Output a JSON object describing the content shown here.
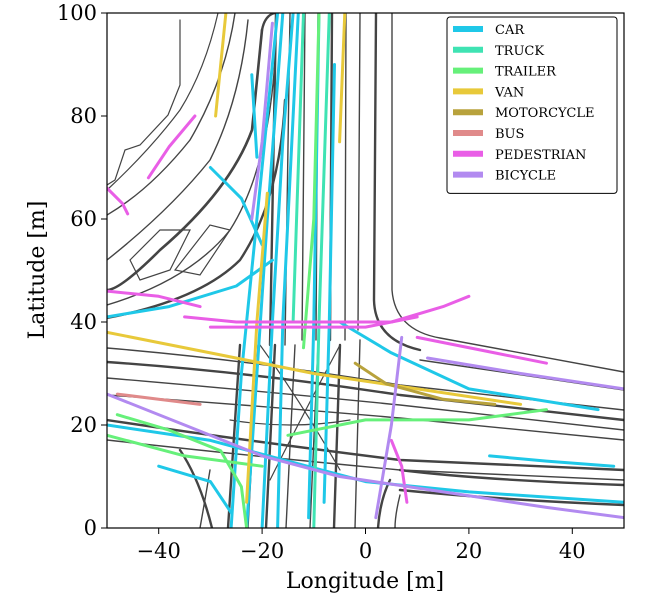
{
  "chart_data": {
    "type": "line",
    "xlabel": "Longitude [m]",
    "ylabel": "Latitude [m]",
    "xlim": [
      -50,
      50
    ],
    "ylim": [
      0,
      100
    ],
    "xticks": [
      -40,
      -20,
      0,
      20,
      40
    ],
    "yticks": [
      0,
      20,
      40,
      60,
      80,
      100
    ],
    "grid": false,
    "legend_position": "top-right",
    "series": [
      {
        "name": "CAR",
        "color": "#1fc8e8",
        "tracks": [
          [
            [
              -26,
              0
            ],
            [
              -24,
              30
            ],
            [
              -21,
              60
            ],
            [
              -18,
              90
            ],
            [
              -17,
              100
            ]
          ],
          [
            [
              -23,
              0
            ],
            [
              -21,
              30
            ],
            [
              -19,
              60
            ],
            [
              -16,
              100
            ]
          ],
          [
            [
              -20,
              0
            ],
            [
              -18,
              40
            ],
            [
              -16,
              75
            ],
            [
              -14,
              100
            ]
          ],
          [
            [
              -17,
              0
            ],
            [
              -16,
              40
            ],
            [
              -13,
              100
            ]
          ],
          [
            [
              -11,
              2
            ],
            [
              -10,
              40
            ],
            [
              -9,
              100
            ]
          ],
          [
            [
              -8,
              5
            ],
            [
              -7,
              40
            ],
            [
              -6,
              90
            ]
          ],
          [
            [
              -50,
              41
            ],
            [
              -38,
              43
            ],
            [
              -25,
              47
            ],
            [
              -18,
              52
            ]
          ],
          [
            [
              -50,
              20
            ],
            [
              -30,
              17
            ],
            [
              -15,
              13
            ],
            [
              0,
              9
            ],
            [
              20,
              7
            ],
            [
              50,
              5
            ]
          ],
          [
            [
              -5,
              40
            ],
            [
              5,
              34
            ],
            [
              20,
              27
            ],
            [
              45,
              23
            ]
          ],
          [
            [
              -40,
              12
            ],
            [
              -30,
              9
            ],
            [
              -26,
              3
            ]
          ],
          [
            [
              -30,
              70
            ],
            [
              -24,
              64
            ],
            [
              -20,
              55
            ]
          ],
          [
            [
              24,
              14
            ],
            [
              35,
              13
            ],
            [
              48,
              12
            ]
          ],
          [
            [
              -22,
              88
            ],
            [
              -21,
              72
            ]
          ]
        ]
      },
      {
        "name": "TRUCK",
        "color": "#3fe3b3",
        "tracks": [
          [
            [
              -14,
              40
            ],
            [
              -12,
              100
            ]
          ],
          [
            [
              -10,
              0
            ],
            [
              -9,
              40
            ],
            [
              -7,
              100
            ]
          ]
        ]
      },
      {
        "name": "TRAILER",
        "color": "#66f07a",
        "tracks": [
          [
            [
              -48,
              22
            ],
            [
              -38,
              19
            ],
            [
              -28,
              15
            ],
            [
              -24,
              8
            ],
            [
              -23,
              0
            ]
          ],
          [
            [
              -15,
              18
            ],
            [
              0,
              21
            ],
            [
              20,
              21
            ],
            [
              35,
              23
            ]
          ],
          [
            [
              -12,
              35
            ],
            [
              -10,
              60
            ],
            [
              -9,
              100
            ]
          ],
          [
            [
              -50,
              18
            ],
            [
              -35,
              14
            ],
            [
              -20,
              12
            ]
          ]
        ]
      },
      {
        "name": "VAN",
        "color": "#e8c93a",
        "tracks": [
          [
            [
              -29,
              80
            ],
            [
              -28,
              90
            ],
            [
              -27,
              100
            ]
          ],
          [
            [
              -50,
              38
            ],
            [
              -30,
              34
            ],
            [
              -10,
              30
            ],
            [
              10,
              27
            ],
            [
              30,
              24
            ]
          ],
          [
            [
              -23,
              5
            ],
            [
              -21,
              40
            ],
            [
              -19,
              65
            ]
          ],
          [
            [
              -5,
              75
            ],
            [
              -4,
              100
            ]
          ]
        ]
      },
      {
        "name": "MOTORCYCLE",
        "color": "#b8a23c",
        "tracks": [
          [
            [
              -2,
              32
            ],
            [
              4,
              28
            ],
            [
              15,
              25
            ],
            [
              25,
              24
            ]
          ]
        ]
      },
      {
        "name": "BUS",
        "color": "#e08a8a",
        "tracks": [
          [
            [
              -48,
              26
            ],
            [
              -40,
              25
            ],
            [
              -32,
              24
            ]
          ]
        ]
      },
      {
        "name": "PEDESTRIAN",
        "color": "#e95ee6",
        "tracks": [
          [
            [
              -35,
              41
            ],
            [
              -25,
              40
            ],
            [
              -10,
              40
            ],
            [
              5,
              40
            ],
            [
              15,
              43
            ],
            [
              20,
              45
            ]
          ],
          [
            [
              -30,
              39
            ],
            [
              -15,
              39
            ],
            [
              0,
              39
            ],
            [
              10,
              41
            ]
          ],
          [
            [
              -42,
              68
            ],
            [
              -38,
              74
            ],
            [
              -33,
              80
            ]
          ],
          [
            [
              -50,
              66
            ],
            [
              -47,
              63
            ],
            [
              -46,
              61
            ]
          ],
          [
            [
              -50,
              46
            ],
            [
              -40,
              45
            ],
            [
              -32,
              43
            ]
          ],
          [
            [
              5,
              17
            ],
            [
              7,
              12
            ],
            [
              8,
              5
            ]
          ],
          [
            [
              10,
              37
            ],
            [
              25,
              34
            ],
            [
              35,
              32
            ]
          ]
        ]
      },
      {
        "name": "BICYCLE",
        "color": "#b28af0",
        "tracks": [
          [
            [
              -50,
              26
            ],
            [
              -35,
              20
            ],
            [
              -20,
              14
            ],
            [
              -5,
              10
            ],
            [
              15,
              7
            ],
            [
              35,
              4
            ],
            [
              50,
              2
            ]
          ],
          [
            [
              7,
              37
            ],
            [
              5,
              20
            ],
            [
              2,
              2
            ]
          ],
          [
            [
              12,
              33
            ],
            [
              30,
              30
            ],
            [
              50,
              27
            ]
          ],
          [
            [
              -22,
              60
            ],
            [
              -20,
              75
            ],
            [
              -18,
              98
            ]
          ]
        ]
      }
    ]
  }
}
